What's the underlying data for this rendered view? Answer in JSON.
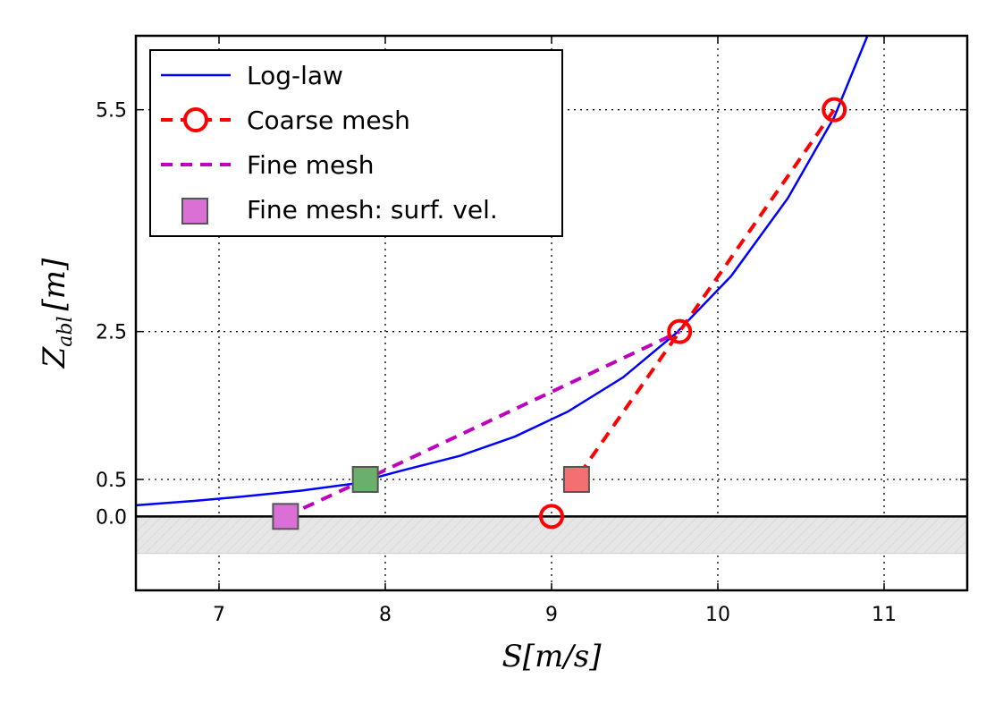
{
  "chart_data": {
    "type": "line",
    "xlabel": "S[m/s]",
    "ylabel_main": "Z",
    "ylabel_sub": "abl",
    "ylabel_unit": "[m]",
    "xlim": [
      6.5,
      11.5
    ],
    "ylim": [
      -1.0,
      6.5
    ],
    "xticks": [
      7,
      8,
      9,
      10,
      11
    ],
    "xtick_labels": [
      "7",
      "8",
      "9",
      "10",
      "11"
    ],
    "yticks": [
      0.0,
      0.5,
      2.5,
      5.5
    ],
    "ytick_labels": [
      "0.0",
      "0.5",
      "2.5",
      "5.5"
    ],
    "grid": true,
    "ground_band": {
      "from": -0.5,
      "to": 0.0
    },
    "series": [
      {
        "name": "Log-law",
        "style": "solid",
        "color": "#0000ff",
        "x": [
          6.5,
          6.85,
          7.15,
          7.5,
          7.8,
          8.1,
          8.45,
          8.78,
          9.1,
          9.43,
          9.75,
          10.08,
          10.42,
          10.7,
          10.9
        ],
        "y": [
          0.15,
          0.21,
          0.27,
          0.35,
          0.44,
          0.62,
          0.82,
          1.08,
          1.42,
          1.88,
          2.48,
          3.25,
          4.3,
          5.4,
          6.5
        ]
      },
      {
        "name": "Coarse mesh",
        "style": "dashed-circles",
        "color": "#ff0000",
        "x": [
          9.0,
          9.77,
          10.7
        ],
        "y": [
          0.0,
          2.5,
          5.5
        ],
        "line_x": [
          9.1,
          9.77,
          10.7
        ],
        "line_y": [
          0.35,
          2.5,
          5.5
        ]
      },
      {
        "name": "Fine mesh",
        "style": "dashed",
        "color": "#bf00bf",
        "x": [
          7.4,
          7.88,
          9.77
        ],
        "y": [
          0.0,
          0.5,
          2.5
        ]
      },
      {
        "name": "Fine mesh: surf. vel.",
        "style": "squares",
        "markers": [
          {
            "x": 7.4,
            "y": 0.0,
            "color": "#da70d6"
          },
          {
            "x": 7.88,
            "y": 0.5,
            "color": "#6ab06a"
          },
          {
            "x": 9.15,
            "y": 0.5,
            "color": "#f47070"
          }
        ]
      }
    ],
    "legend": {
      "placement": "top-left",
      "entries": [
        "Log-law",
        "Coarse mesh",
        "Fine mesh",
        "Fine mesh: surf. vel."
      ]
    }
  }
}
